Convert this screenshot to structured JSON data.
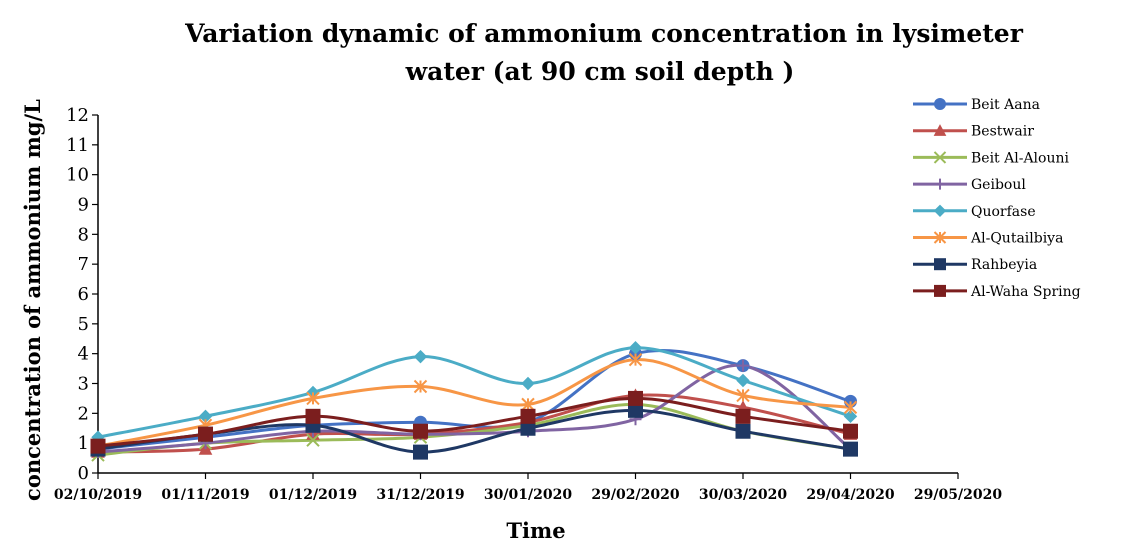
{
  "chart_data": {
    "type": "line",
    "title_line1": "Variation dynamic of ammonium  concentration in lysimeter",
    "title_line2": "water (at 90 cm soil depth )",
    "xlabel": "Time",
    "ylabel": "concentration of ammonium  mg/L",
    "xlim": [
      "2019-10-02",
      "2020-05-29"
    ],
    "ylim": [
      0,
      12
    ],
    "x_ticks": [
      "02/10/2019",
      "01/11/2019",
      "01/12/2019",
      "31/12/2019",
      "30/01/2020",
      "29/02/2020",
      "30/03/2020",
      "29/04/2020",
      "29/05/2020"
    ],
    "y_ticks": [
      0,
      1,
      2,
      3,
      4,
      5,
      6,
      7,
      8,
      9,
      10,
      11,
      12
    ],
    "legend_position": "right",
    "x": [
      "2019-10-02",
      "2019-11-01",
      "2019-12-01",
      "2019-12-31",
      "2020-01-30",
      "2020-02-29",
      "2020-03-30",
      "2020-04-29"
    ],
    "series": [
      {
        "name": "Beit Aana",
        "color": "#4472C4",
        "marker": "circle",
        "values": [
          0.8,
          1.2,
          1.6,
          1.7,
          1.7,
          4.0,
          3.6,
          2.4
        ]
      },
      {
        "name": "Bestwair",
        "color": "#C0504D",
        "marker": "triangle",
        "values": [
          0.7,
          0.8,
          1.3,
          1.3,
          1.7,
          2.6,
          2.2,
          1.3
        ]
      },
      {
        "name": "Beit Al-Alouni",
        "color": "#9BBB59",
        "marker": "x",
        "values": [
          0.6,
          1.0,
          1.1,
          1.2,
          1.6,
          2.3,
          1.4,
          0.8
        ]
      },
      {
        "name": "Geiboul",
        "color": "#8064A2",
        "marker": "plus",
        "values": [
          0.7,
          1.0,
          1.4,
          1.3,
          1.4,
          1.8,
          3.6,
          0.8
        ]
      },
      {
        "name": "Quorfase",
        "color": "#4BACC6",
        "marker": "diamond",
        "values": [
          1.2,
          1.9,
          2.7,
          3.9,
          3.0,
          4.2,
          3.1,
          1.9
        ]
      },
      {
        "name": "Al-Qutailbiya",
        "color": "#F79646",
        "marker": "asterisk",
        "values": [
          0.9,
          1.6,
          2.5,
          2.9,
          2.3,
          3.8,
          2.6,
          2.2
        ]
      },
      {
        "name": "Rahbeyia",
        "color": "#1F3864",
        "marker": "square",
        "values": [
          0.8,
          1.3,
          1.6,
          0.7,
          1.5,
          2.1,
          1.4,
          0.8
        ]
      },
      {
        "name": "Al-Waha Spring",
        "color": "#7B1E1E",
        "marker": "square",
        "values": [
          0.9,
          1.3,
          1.9,
          1.4,
          1.9,
          2.5,
          1.9,
          1.4
        ]
      }
    ]
  }
}
